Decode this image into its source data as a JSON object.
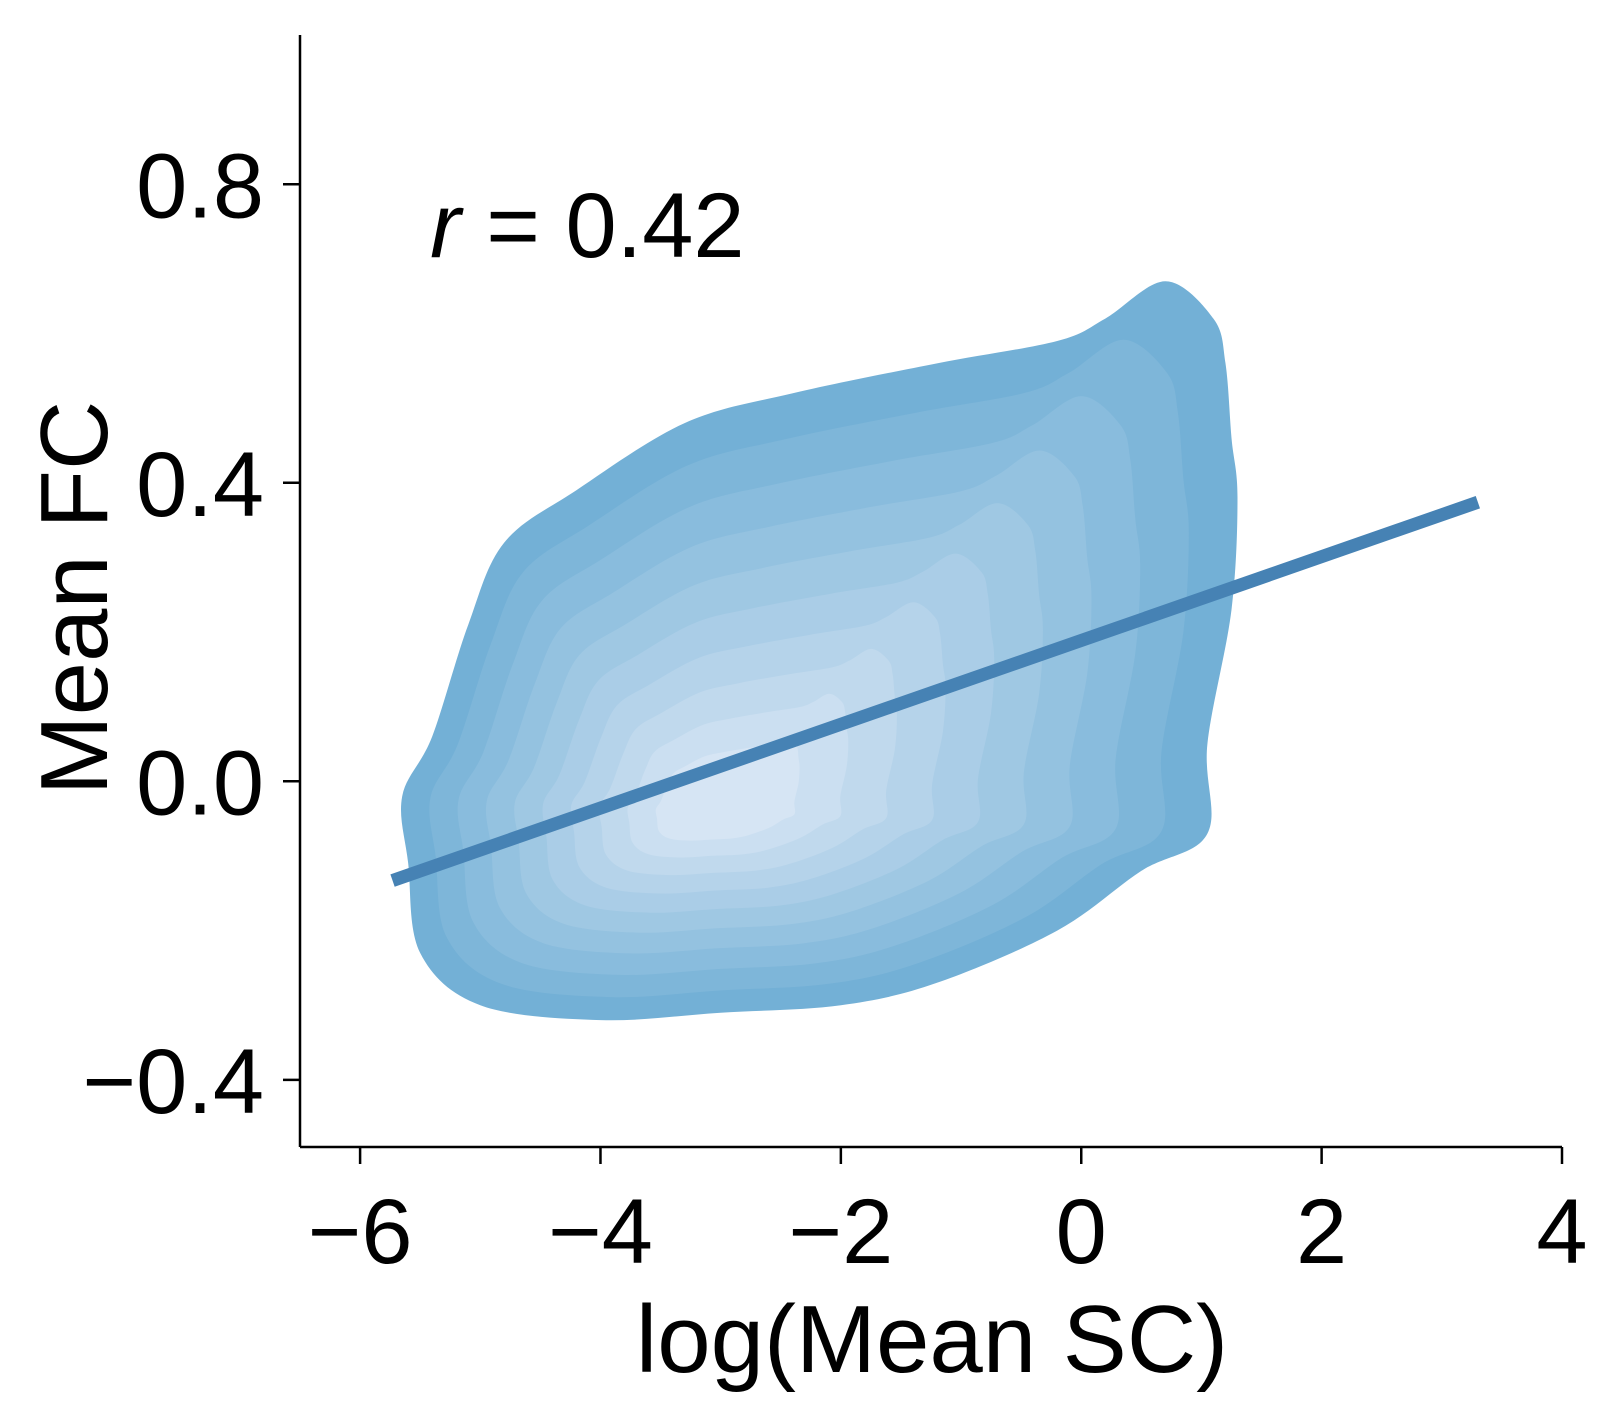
{
  "chart_data": {
    "type": "kde-density-with-regression",
    "title": "",
    "xlabel": "log(Mean SC)",
    "ylabel": "Mean FC",
    "xlim": [
      -6.5,
      4
    ],
    "ylim": [
      -0.49,
      1.0
    ],
    "xticks": [
      -6,
      -4,
      -2,
      0,
      2,
      4
    ],
    "yticks": [
      -0.4,
      0.0,
      0.4,
      0.8
    ],
    "xtick_labels": [
      "−6",
      "−4",
      "−2",
      "0",
      "2",
      "4"
    ],
    "ytick_labels": [
      "−0.4",
      "0.0",
      "0.4",
      "0.8"
    ],
    "annotation": {
      "variable": "r",
      "text": " = 0.42",
      "value": 0.42
    },
    "grid": false,
    "density": {
      "center": [
        -3.1,
        -0.04
      ],
      "levels": 10,
      "outer_color": "#73b0d6",
      "inner_color": "#d6e5f4",
      "outer_contour": [
        [
          -5.6,
          -0.11
        ],
        [
          -5.5,
          -0.23
        ],
        [
          -5.0,
          -0.3
        ],
        [
          -4.0,
          -0.32
        ],
        [
          -3.0,
          -0.31
        ],
        [
          -2.0,
          -0.3
        ],
        [
          -1.2,
          -0.27
        ],
        [
          -0.2,
          -0.2
        ],
        [
          0.5,
          -0.12
        ],
        [
          1.05,
          -0.07
        ],
        [
          1.05,
          0.05
        ],
        [
          1.25,
          0.23
        ],
        [
          1.3,
          0.38
        ],
        [
          1.25,
          0.46
        ],
        [
          1.2,
          0.56
        ],
        [
          1.1,
          0.62
        ],
        [
          0.7,
          0.67
        ],
        [
          0.2,
          0.62
        ],
        [
          -0.2,
          0.59
        ],
        [
          -1.2,
          0.56
        ],
        [
          -2.4,
          0.52
        ],
        [
          -3.3,
          0.48
        ],
        [
          -4.2,
          0.39
        ],
        [
          -4.8,
          0.32
        ],
        [
          -5.1,
          0.21
        ],
        [
          -5.4,
          0.06
        ],
        [
          -5.65,
          -0.02
        ]
      ]
    },
    "regression": {
      "x": [
        -5.73,
        3.3
      ],
      "y": [
        -0.133,
        0.374
      ],
      "color": "#4682b4"
    }
  }
}
